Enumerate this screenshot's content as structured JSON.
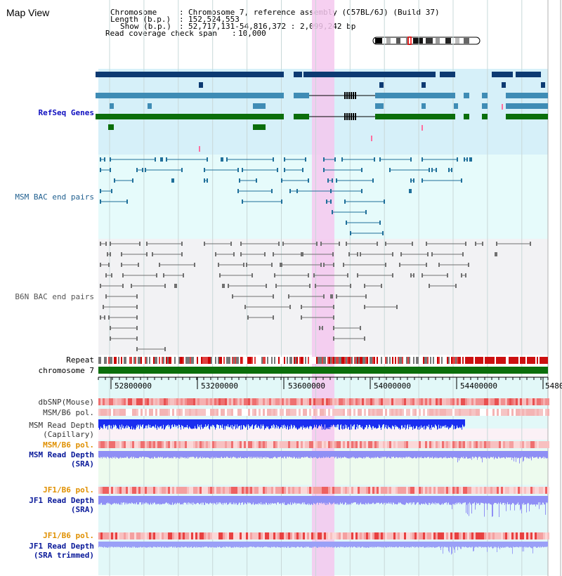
{
  "view_title": "Map View",
  "info": {
    "chromosome_key": "Chromosome",
    "chromosome_val": "Chromosome 7, reference assembly (C57BL/6J) (Build 37)",
    "length_key": "Length (b.p.)",
    "length_val": "152,524,553",
    "show_key": "Show (b.p.)",
    "show_val": "52,717,131-54,816,372 : 2,099,242 bp",
    "coverage_key": "Read coverage check span",
    "coverage_val": "10,000"
  },
  "tracks": {
    "refseq": "RefSeq Genes",
    "msm_bac": "MSM BAC end pairs",
    "b6n_bac": "B6N BAC end pairs",
    "repeat": "Repeat",
    "chromosome": "chromosome 7",
    "dbsnp": "dbSNP(Mouse)",
    "msm_b6_pol": "MSM/B6 pol.",
    "msm_depth_cap": [
      "MSM Read Depth",
      "(Capillary)"
    ],
    "msm_b6_pol2": "MSM/B6 pol.",
    "msm_depth_sra": [
      "MSM Read Depth",
      "(SRA)"
    ],
    "jf1_b6_pol": "JF1/B6 pol.",
    "jf1_depth_sra": [
      "JF1 Read Depth",
      "(SRA)"
    ],
    "jf1_b6_pol2": "JF1/B6 pol.",
    "jf1_depth_trim": [
      "JF1 Read Depth",
      "(SRA trimmed)"
    ]
  },
  "ruler_ticks": [
    "52800000",
    "53200000",
    "53600000",
    "54000000",
    "54400000",
    "5480"
  ],
  "colors": {
    "highlight": "#f4c8ee",
    "refseq_bg": "#d6f0f9",
    "msm_bac_bg": "#e6fbfb",
    "b6n_bac_bg": "#f2f2f4",
    "refseq_dark": "#0d3a72",
    "refseq_mid": "#3f8cb5",
    "refseq_green": "#0b6e0b",
    "msm_bac": "#1f6f9a",
    "b6n_bac": "#707070",
    "chromosome": "#0b6e0b",
    "label_refseq": "#1010c0",
    "label_msm": "#1f5f8f",
    "label_b6n": "#555555",
    "label_pol_orange": "#e09000",
    "label_depth_blue": "#0a1a9a",
    "depth_cap": "#1a2ef0",
    "depth_sra": "#8f8ff5",
    "jf1_bg": "#e3f9f9",
    "msm_sra_bg": "#edfbee"
  }
}
